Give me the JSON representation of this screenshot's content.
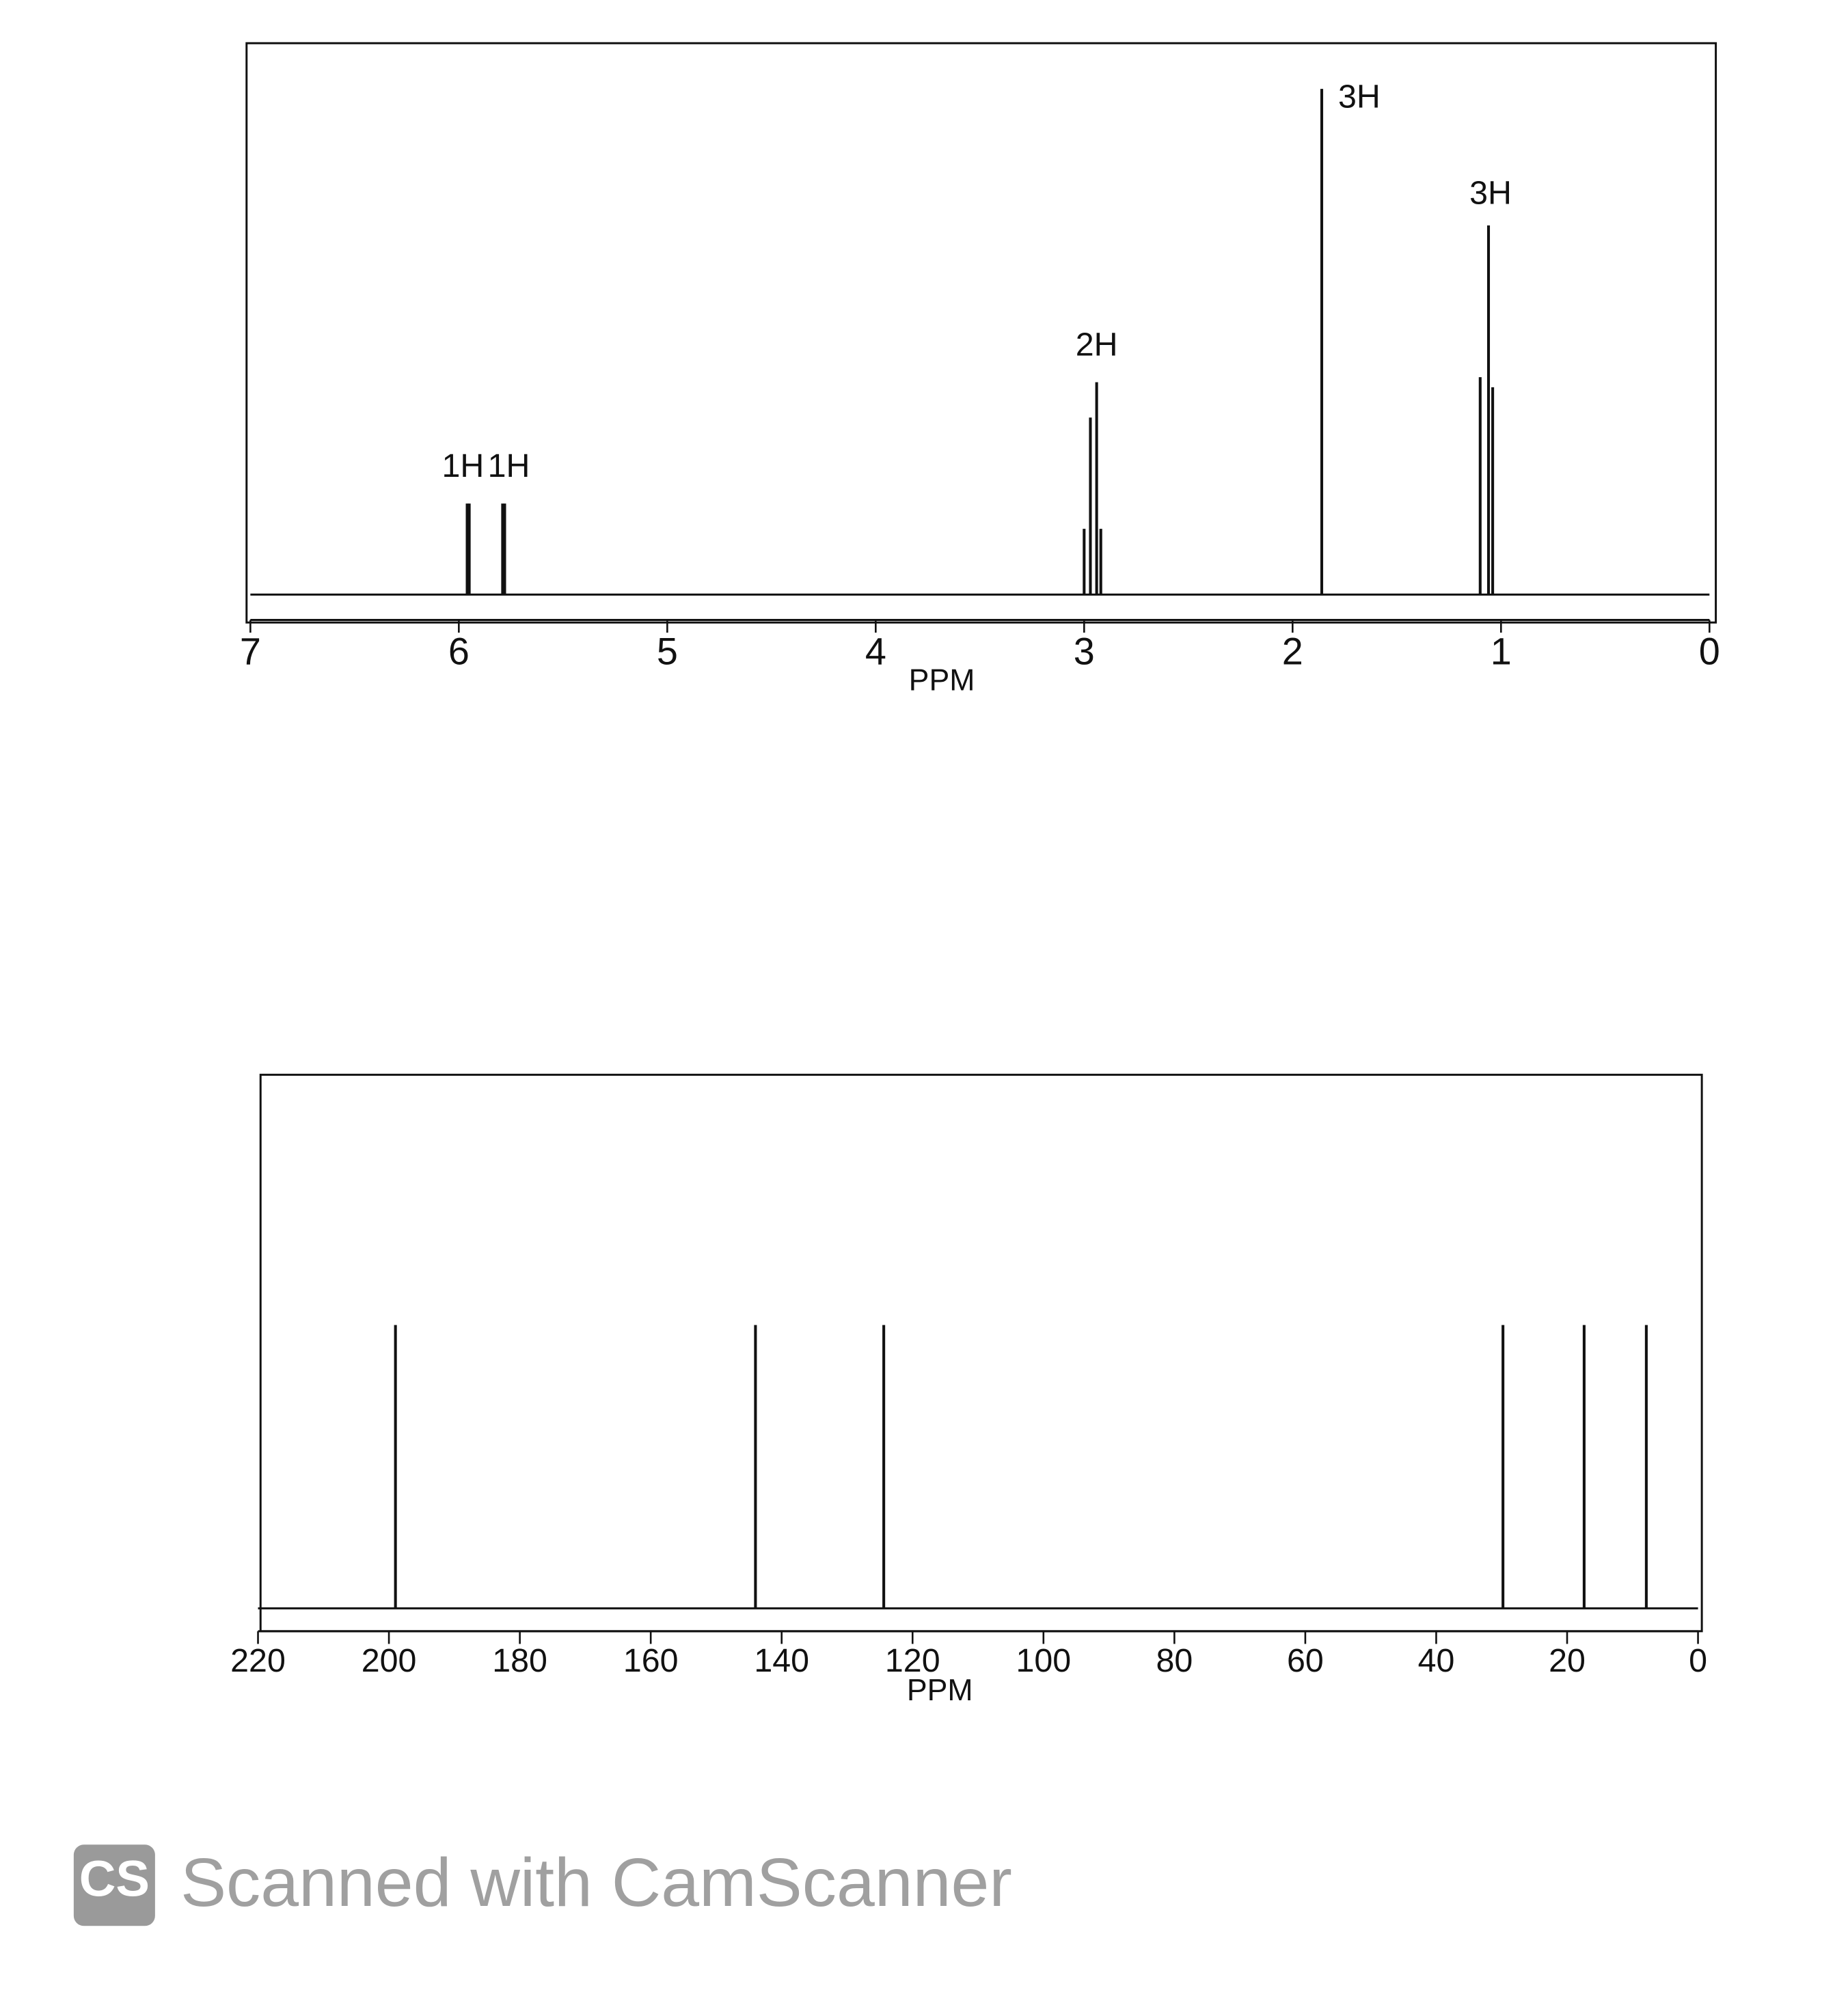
{
  "chart_data": [
    {
      "type": "spectrum",
      "x_label": "PPM",
      "xlim": [
        7,
        0
      ],
      "xticks": [
        7,
        6,
        5,
        4,
        3,
        2,
        1,
        0
      ],
      "x": [
        5.96,
        5.95,
        5.79,
        5.78,
        3.0,
        2.97,
        2.94,
        2.92,
        1.86,
        1.1,
        1.06,
        1.04
      ],
      "values": [
        18,
        18,
        18,
        18,
        13,
        35,
        42,
        13,
        100,
        43,
        73,
        41
      ],
      "annotations": [
        {
          "text": "1H",
          "x": 5.98,
          "y": 25
        },
        {
          "text": "1H",
          "x": 5.76,
          "y": 25
        },
        {
          "text": "2H",
          "x": 2.94,
          "y": 49
        },
        {
          "text": "3H",
          "x": 1.68,
          "y": 98
        },
        {
          "text": "3H",
          "x": 1.05,
          "y": 79
        }
      ]
    },
    {
      "type": "spectrum",
      "x_label": "PPM",
      "xlim": [
        220,
        0
      ],
      "xticks": [
        220,
        200,
        180,
        160,
        140,
        120,
        100,
        80,
        60,
        40,
        20,
        0
      ],
      "x": [
        199,
        144,
        124.4,
        29.8,
        17.4,
        7.9
      ],
      "values": [
        100,
        100,
        100,
        100,
        100,
        100
      ]
    }
  ],
  "watermark": {
    "logo": "CS",
    "text": "Scanned with CamScanner"
  }
}
